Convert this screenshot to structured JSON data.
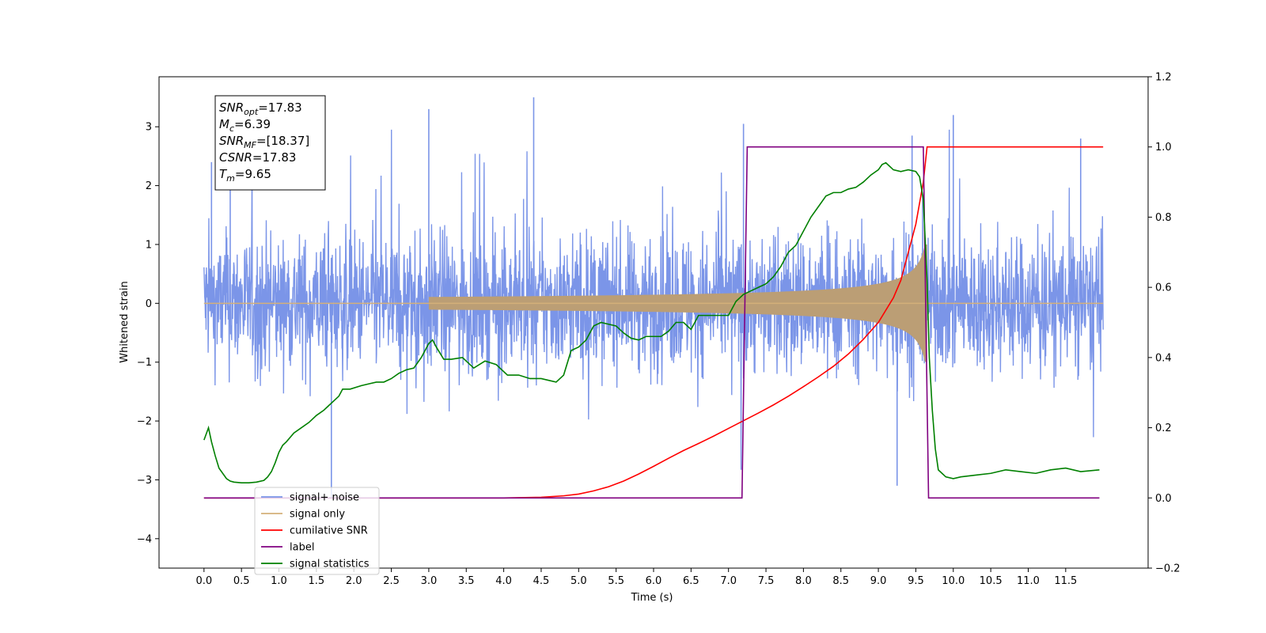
{
  "chart_data": {
    "type": "line",
    "xlabel": "Time (s)",
    "ylabel": "Whitened strain",
    "xlim": [
      -0.6,
      12.6
    ],
    "ylim": [
      -4.5,
      3.85
    ],
    "y2lim": [
      -0.2,
      1.2
    ],
    "grid": false,
    "legend_position": "lower-left",
    "x_ticks": [
      "0.0",
      "0.5",
      "1.0",
      "1.5",
      "2.0",
      "2.5",
      "3.0",
      "3.5",
      "4.0",
      "4.5",
      "5.0",
      "5.5",
      "6.0",
      "6.5",
      "7.0",
      "7.5",
      "8.0",
      "8.5",
      "9.0",
      "9.5",
      "10.0",
      "10.5",
      "11.0",
      "11.5"
    ],
    "y_ticks": [
      "3",
      "2",
      "1",
      "0",
      "−1",
      "−2",
      "−3",
      "−4"
    ],
    "y2_ticks": [
      "1.2",
      "1.0",
      "0.8",
      "0.6",
      "0.4",
      "0.2",
      "0.0",
      "−0.2"
    ],
    "annotation": [
      {
        "label": "SNR",
        "sub": "opt",
        "value": "=17.83"
      },
      {
        "label": "M",
        "sub": "c",
        "value": "=6.39"
      },
      {
        "label": "SNR",
        "sub": "MF",
        "value": "=[18.37]"
      },
      {
        "label": "CSNR",
        "sub": "",
        "value": "=17.83"
      },
      {
        "label": "T",
        "sub": "m",
        "value": "=9.65"
      }
    ],
    "series": [
      {
        "name": "signal+ noise",
        "color": "#7b95e8",
        "kind": "noise",
        "x_range": [
          0.0,
          12.0
        ],
        "band_upper": 1.3,
        "band_lower": -1.3,
        "peaks": [
          [
            0.1,
            2.4
          ],
          [
            0.35,
            2.15
          ],
          [
            1.7,
            -3.3
          ],
          [
            3.0,
            3.3
          ],
          [
            4.4,
            3.5
          ],
          [
            7.2,
            3.05
          ],
          [
            9.25,
            -3.1
          ],
          [
            9.45,
            2.85
          ],
          [
            10.0,
            3.2
          ],
          [
            11.7,
            2.8
          ]
        ]
      },
      {
        "name": "signal only",
        "color": "#d4b07a",
        "kind": "envelope",
        "t_merge": 9.65,
        "amp_at_merge": 1.0
      },
      {
        "name": "cumilative SNR",
        "color": "#ff0000",
        "axis": "right",
        "x": [
          0.0,
          4.0,
          4.5,
          4.8,
          5.0,
          5.2,
          5.4,
          5.6,
          5.8,
          6.0,
          6.2,
          6.4,
          6.6,
          6.8,
          7.0,
          7.2,
          7.4,
          7.6,
          7.8,
          8.0,
          8.2,
          8.4,
          8.6,
          8.8,
          9.0,
          9.2,
          9.3,
          9.4,
          9.5,
          9.55,
          9.6,
          9.65,
          9.66,
          12.0
        ],
        "y": [
          0.0,
          0.0,
          0.002,
          0.006,
          0.011,
          0.02,
          0.032,
          0.048,
          0.068,
          0.09,
          0.113,
          0.135,
          0.155,
          0.176,
          0.198,
          0.22,
          0.242,
          0.265,
          0.29,
          0.317,
          0.345,
          0.375,
          0.41,
          0.452,
          0.5,
          0.57,
          0.62,
          0.7,
          0.78,
          0.84,
          0.9,
          1.0,
          1.0,
          1.0
        ]
      },
      {
        "name": "label",
        "color": "#800080",
        "axis": "right",
        "x": [
          0.0,
          7.18,
          7.25,
          9.6,
          9.67,
          11.95
        ],
        "y": [
          0.0,
          0.0,
          1.0,
          1.0,
          0.0,
          0.0
        ]
      },
      {
        "name": "signal statistics",
        "color": "#008000",
        "axis": "right",
        "x": [
          0.0,
          0.06,
          0.1,
          0.15,
          0.2,
          0.25,
          0.3,
          0.35,
          0.4,
          0.5,
          0.6,
          0.7,
          0.8,
          0.85,
          0.9,
          0.95,
          1.0,
          1.05,
          1.1,
          1.2,
          1.3,
          1.4,
          1.5,
          1.6,
          1.7,
          1.8,
          1.85,
          1.95,
          2.1,
          2.2,
          2.3,
          2.4,
          2.5,
          2.6,
          2.7,
          2.8,
          2.9,
          3.0,
          3.05,
          3.1,
          3.2,
          3.3,
          3.45,
          3.6,
          3.75,
          3.9,
          4.05,
          4.2,
          4.35,
          4.5,
          4.6,
          4.7,
          4.8,
          4.9,
          5.0,
          5.1,
          5.2,
          5.3,
          5.4,
          5.5,
          5.6,
          5.7,
          5.8,
          5.9,
          6.0,
          6.1,
          6.2,
          6.3,
          6.4,
          6.5,
          6.6,
          6.7,
          6.8,
          6.9,
          7.0,
          7.1,
          7.2,
          7.3,
          7.4,
          7.5,
          7.6,
          7.7,
          7.8,
          7.9,
          8.0,
          8.1,
          8.2,
          8.3,
          8.4,
          8.5,
          8.6,
          8.7,
          8.8,
          8.9,
          9.0,
          9.05,
          9.1,
          9.15,
          9.2,
          9.3,
          9.4,
          9.5,
          9.55,
          9.6,
          9.65,
          9.68,
          9.72,
          9.76,
          9.8,
          9.85,
          9.9,
          10.0,
          10.1,
          10.3,
          10.5,
          10.7,
          10.9,
          11.1,
          11.3,
          11.5,
          11.7,
          11.95
        ],
        "y": [
          0.165,
          0.2,
          0.16,
          0.12,
          0.085,
          0.07,
          0.055,
          0.048,
          0.045,
          0.043,
          0.043,
          0.045,
          0.05,
          0.06,
          0.075,
          0.1,
          0.13,
          0.15,
          0.16,
          0.185,
          0.2,
          0.215,
          0.235,
          0.25,
          0.27,
          0.29,
          0.31,
          0.31,
          0.32,
          0.325,
          0.33,
          0.33,
          0.34,
          0.355,
          0.365,
          0.37,
          0.4,
          0.44,
          0.45,
          0.43,
          0.395,
          0.395,
          0.4,
          0.37,
          0.39,
          0.38,
          0.35,
          0.35,
          0.34,
          0.34,
          0.335,
          0.33,
          0.35,
          0.42,
          0.43,
          0.45,
          0.49,
          0.5,
          0.495,
          0.49,
          0.47,
          0.455,
          0.45,
          0.46,
          0.46,
          0.46,
          0.475,
          0.5,
          0.5,
          0.48,
          0.52,
          0.52,
          0.52,
          0.52,
          0.52,
          0.56,
          0.58,
          0.59,
          0.6,
          0.61,
          0.63,
          0.66,
          0.7,
          0.72,
          0.76,
          0.8,
          0.83,
          0.86,
          0.87,
          0.87,
          0.88,
          0.885,
          0.9,
          0.92,
          0.935,
          0.95,
          0.955,
          0.945,
          0.935,
          0.93,
          0.935,
          0.93,
          0.915,
          0.85,
          0.62,
          0.4,
          0.25,
          0.14,
          0.08,
          0.07,
          0.06,
          0.055,
          0.06,
          0.065,
          0.07,
          0.08,
          0.075,
          0.07,
          0.08,
          0.085,
          0.075,
          0.08
        ]
      }
    ]
  }
}
